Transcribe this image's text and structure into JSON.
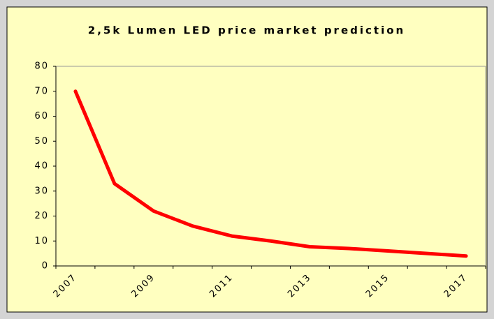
{
  "chart_data": {
    "type": "line",
    "title": "2,5k Lumen LED price market prediction",
    "categories": [
      "2007",
      null,
      "2009",
      null,
      "2011",
      null,
      "2013",
      null,
      "2015",
      null,
      "2017"
    ],
    "values": [
      70,
      33,
      22,
      16,
      12,
      10,
      7.7,
      7,
      6,
      5,
      4
    ],
    "color": "#ff0000",
    "ylim": [
      0,
      80
    ],
    "yticks": [
      0,
      10,
      20,
      30,
      40,
      50,
      60,
      70,
      80
    ],
    "grid": false
  }
}
